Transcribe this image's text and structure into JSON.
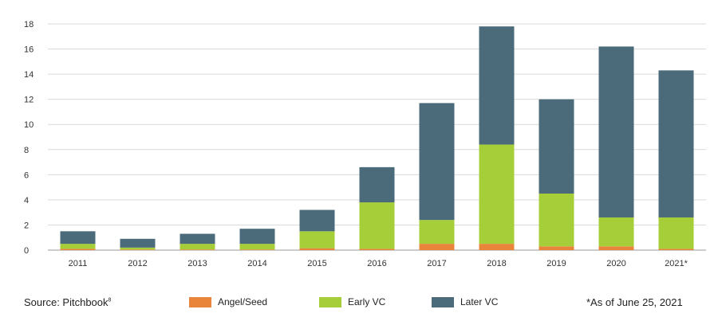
{
  "chart_data": {
    "type": "bar",
    "stacked": true,
    "categories": [
      "2011",
      "2012",
      "2013",
      "2014",
      "2015",
      "2016",
      "2017",
      "2018",
      "2019",
      "2020",
      "2021*"
    ],
    "series": [
      {
        "name": "Angel/Seed",
        "color": "#e8853a",
        "values": [
          0.1,
          0.05,
          0.05,
          0.05,
          0.15,
          0.1,
          0.5,
          0.5,
          0.3,
          0.3,
          0.1
        ]
      },
      {
        "name": "Early VC",
        "color": "#a6ce39",
        "values": [
          0.4,
          0.15,
          0.45,
          0.45,
          1.35,
          3.7,
          1.9,
          7.9,
          4.2,
          2.3,
          2.5
        ]
      },
      {
        "name": "Later VC",
        "color": "#4b6b7b",
        "values": [
          1.0,
          0.7,
          0.8,
          1.2,
          1.7,
          2.8,
          9.3,
          9.4,
          7.5,
          13.6,
          11.7
        ]
      }
    ],
    "yticks": [
      "0",
      "2",
      "4",
      "6",
      "8",
      "10",
      "12",
      "14",
      "16",
      "18"
    ],
    "ylim": [
      0,
      18
    ],
    "grid": true,
    "legend_position": "bottom"
  },
  "footer": {
    "source_text": "Source: Pitchbook",
    "source_footnote": "8",
    "note": "*As of June 25, 2021"
  },
  "colors": {
    "gridline": "#d9d9d9",
    "axis": "#9a9a9a"
  }
}
